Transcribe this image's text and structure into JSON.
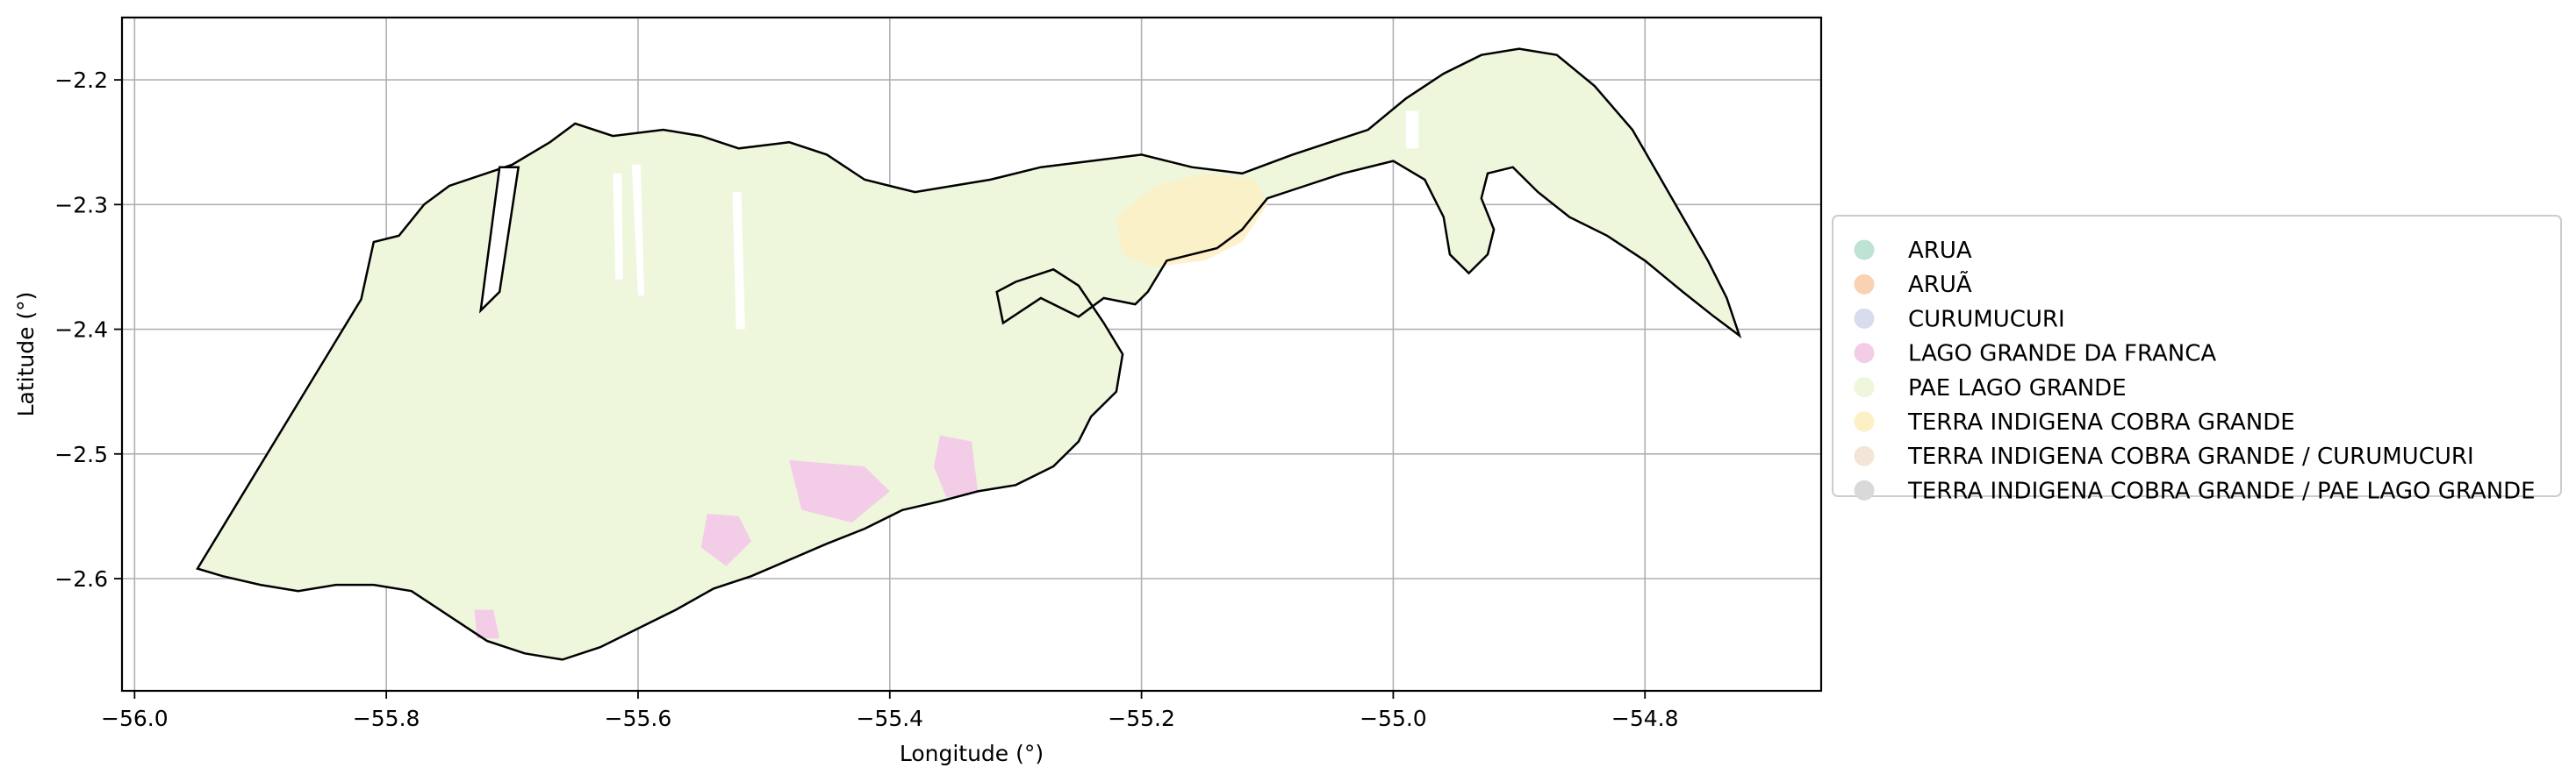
{
  "chart_data": {
    "type": "map",
    "xlabel": "Longitude (°)",
    "ylabel": "Latitude (°)",
    "xlim": [
      -56.01,
      -54.66
    ],
    "ylim": [
      -2.69,
      -2.15
    ],
    "x_ticks": [
      -56.0,
      -55.8,
      -55.6,
      -55.4,
      -55.2,
      -55.0,
      -54.8
    ],
    "x_tick_labels": [
      "−56.0",
      "−55.8",
      "−55.6",
      "−55.4",
      "−55.2",
      "−55.0",
      "−54.8"
    ],
    "y_ticks": [
      -2.2,
      -2.3,
      -2.4,
      -2.5,
      -2.6
    ],
    "y_tick_labels": [
      "−2.2",
      "−2.3",
      "−2.4",
      "−2.5",
      "−2.6"
    ],
    "grid": true,
    "legend_position": "right",
    "legend": [
      {
        "label": "ARUA",
        "color": "#bde3d3"
      },
      {
        "label": "ARUÃ",
        "color": "#f9d2b4"
      },
      {
        "label": "CURUMUCURI",
        "color": "#d8dcef"
      },
      {
        "label": "LAGO GRANDE DA FRANCA",
        "color": "#f3cde8"
      },
      {
        "label": "PAE LAGO GRANDE",
        "color": "#eef7dc"
      },
      {
        "label": "TERRA INDIGENA COBRA GRANDE",
        "color": "#fdf0c4"
      },
      {
        "label": "TERRA INDIGENA COBRA GRANDE / CURUMUCURI",
        "color": "#f3e6d8"
      },
      {
        "label": "TERRA INDIGENA COBRA GRANDE / PAE LAGO GRANDE",
        "color": "#d9d9d9"
      }
    ],
    "outline_lonlat": [
      [
        -55.95,
        -2.592
      ],
      [
        -55.82,
        -2.376
      ],
      [
        -55.81,
        -2.33
      ],
      [
        -55.79,
        -2.325
      ],
      [
        -55.77,
        -2.3
      ],
      [
        -55.75,
        -2.285
      ],
      [
        -55.7,
        -2.268
      ],
      [
        -55.67,
        -2.25
      ],
      [
        -55.65,
        -2.235
      ],
      [
        -55.62,
        -2.245
      ],
      [
        -55.58,
        -2.24
      ],
      [
        -55.55,
        -2.245
      ],
      [
        -55.52,
        -2.255
      ],
      [
        -55.48,
        -2.25
      ],
      [
        -55.45,
        -2.26
      ],
      [
        -55.42,
        -2.28
      ],
      [
        -55.38,
        -2.29
      ],
      [
        -55.32,
        -2.28
      ],
      [
        -55.28,
        -2.27
      ],
      [
        -55.24,
        -2.265
      ],
      [
        -55.2,
        -2.26
      ],
      [
        -55.16,
        -2.27
      ],
      [
        -55.12,
        -2.275
      ],
      [
        -55.08,
        -2.26
      ],
      [
        -55.05,
        -2.25
      ],
      [
        -55.02,
        -2.24
      ],
      [
        -54.99,
        -2.215
      ],
      [
        -54.96,
        -2.195
      ],
      [
        -54.93,
        -2.18
      ],
      [
        -54.9,
        -2.175
      ],
      [
        -54.87,
        -2.18
      ],
      [
        -54.84,
        -2.205
      ],
      [
        -54.81,
        -2.24
      ],
      [
        -54.79,
        -2.275
      ],
      [
        -54.77,
        -2.31
      ],
      [
        -54.75,
        -2.345
      ],
      [
        -54.735,
        -2.375
      ],
      [
        -54.725,
        -2.405
      ],
      [
        -54.745,
        -2.39
      ],
      [
        -54.77,
        -2.37
      ],
      [
        -54.8,
        -2.345
      ],
      [
        -54.83,
        -2.325
      ],
      [
        -54.86,
        -2.31
      ],
      [
        -54.885,
        -2.29
      ],
      [
        -54.905,
        -2.27
      ],
      [
        -54.925,
        -2.275
      ],
      [
        -54.93,
        -2.295
      ],
      [
        -54.92,
        -2.32
      ],
      [
        -54.925,
        -2.34
      ],
      [
        -54.94,
        -2.355
      ],
      [
        -54.955,
        -2.34
      ],
      [
        -54.96,
        -2.31
      ],
      [
        -54.975,
        -2.28
      ],
      [
        -55.0,
        -2.265
      ],
      [
        -55.04,
        -2.275
      ],
      [
        -55.07,
        -2.285
      ],
      [
        -55.1,
        -2.295
      ],
      [
        -55.12,
        -2.32
      ],
      [
        -55.14,
        -2.335
      ],
      [
        -55.16,
        -2.34
      ],
      [
        -55.18,
        -2.345
      ],
      [
        -55.195,
        -2.37
      ],
      [
        -55.205,
        -2.38
      ],
      [
        -55.23,
        -2.375
      ],
      [
        -55.25,
        -2.39
      ],
      [
        -55.28,
        -2.375
      ],
      [
        -55.31,
        -2.395
      ],
      [
        -55.315,
        -2.37
      ],
      [
        -55.3,
        -2.362
      ],
      [
        -55.27,
        -2.352
      ],
      [
        -55.25,
        -2.365
      ],
      [
        -55.23,
        -2.395
      ],
      [
        -55.215,
        -2.42
      ],
      [
        -55.22,
        -2.45
      ],
      [
        -55.24,
        -2.47
      ],
      [
        -55.25,
        -2.49
      ],
      [
        -55.27,
        -2.51
      ],
      [
        -55.3,
        -2.525
      ],
      [
        -55.33,
        -2.53
      ],
      [
        -55.36,
        -2.538
      ],
      [
        -55.39,
        -2.545
      ],
      [
        -55.42,
        -2.56
      ],
      [
        -55.45,
        -2.572
      ],
      [
        -55.48,
        -2.585
      ],
      [
        -55.51,
        -2.598
      ],
      [
        -55.54,
        -2.608
      ],
      [
        -55.57,
        -2.625
      ],
      [
        -55.6,
        -2.64
      ],
      [
        -55.63,
        -2.655
      ],
      [
        -55.66,
        -2.665
      ],
      [
        -55.69,
        -2.66
      ],
      [
        -55.72,
        -2.65
      ],
      [
        -55.75,
        -2.63
      ],
      [
        -55.78,
        -2.61
      ],
      [
        -55.81,
        -2.605
      ],
      [
        -55.84,
        -2.605
      ],
      [
        -55.87,
        -2.61
      ],
      [
        -55.9,
        -2.605
      ],
      [
        -55.93,
        -2.598
      ],
      [
        -55.95,
        -2.592
      ]
    ],
    "inner_gap_lonlat": [
      [
        -55.725,
        -2.385
      ],
      [
        -55.71,
        -2.27
      ],
      [
        -55.695,
        -2.27
      ],
      [
        -55.71,
        -2.37
      ]
    ],
    "gaps_lonlat": [
      [
        [
          -55.605,
          -2.268
        ],
        [
          -55.598,
          -2.268
        ],
        [
          -55.595,
          -2.373
        ],
        [
          -55.6,
          -2.373
        ]
      ],
      [
        [
          -55.62,
          -2.275
        ],
        [
          -55.613,
          -2.275
        ],
        [
          -55.612,
          -2.36
        ],
        [
          -55.618,
          -2.36
        ]
      ],
      [
        [
          -55.525,
          -2.29
        ],
        [
          -55.518,
          -2.29
        ],
        [
          -55.515,
          -2.4
        ],
        [
          -55.522,
          -2.4
        ]
      ],
      [
        [
          -54.99,
          -2.225
        ],
        [
          -54.98,
          -2.225
        ],
        [
          -54.98,
          -2.255
        ],
        [
          -54.99,
          -2.255
        ]
      ]
    ],
    "tribal_patch_lonlat": [
      [
        -55.22,
        -2.31
      ],
      [
        -55.19,
        -2.285
      ],
      [
        -55.15,
        -2.275
      ],
      [
        -55.11,
        -2.28
      ],
      [
        -55.1,
        -2.3
      ],
      [
        -55.12,
        -2.33
      ],
      [
        -55.15,
        -2.345
      ],
      [
        -55.19,
        -2.35
      ],
      [
        -55.215,
        -2.34
      ]
    ],
    "pink_patches_lonlat": [
      [
        [
          -55.48,
          -2.505
        ],
        [
          -55.42,
          -2.51
        ],
        [
          -55.4,
          -2.53
        ],
        [
          -55.43,
          -2.555
        ],
        [
          -55.47,
          -2.545
        ]
      ],
      [
        [
          -55.545,
          -2.548
        ],
        [
          -55.52,
          -2.55
        ],
        [
          -55.51,
          -2.57
        ],
        [
          -55.53,
          -2.59
        ],
        [
          -55.55,
          -2.575
        ]
      ],
      [
        [
          -55.36,
          -2.485
        ],
        [
          -55.335,
          -2.49
        ],
        [
          -55.33,
          -2.53
        ],
        [
          -55.355,
          -2.535
        ],
        [
          -55.365,
          -2.51
        ]
      ],
      [
        [
          -55.73,
          -2.625
        ],
        [
          -55.715,
          -2.625
        ],
        [
          -55.71,
          -2.648
        ],
        [
          -55.728,
          -2.648
        ]
      ]
    ]
  }
}
